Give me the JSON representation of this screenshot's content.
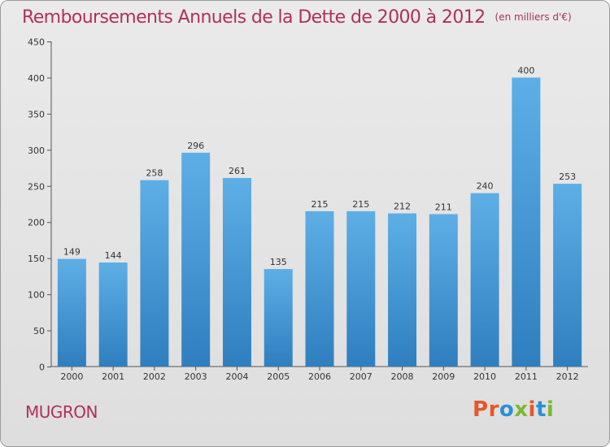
{
  "title": "Remboursements Annuels de la Dette de 2000 à 2012",
  "subtitle": "(en milliers d'€)",
  "commune": "MUGRON",
  "brand": "Proxiti",
  "colors": {
    "title": "#b0305c",
    "bar_top": "#5eaee6",
    "bar_bottom": "#2f7fc0",
    "logo_letters": [
      "#e4582a",
      "#e4582a",
      "#2a8fd6",
      "#7cb832",
      "#e4582a",
      "#2a8fd6",
      "#7cb832"
    ]
  },
  "chart_data": {
    "type": "bar",
    "title": "Remboursements Annuels de la Dette de 2000 à 2012",
    "xlabel": "",
    "ylabel": "",
    "categories": [
      "2000",
      "2001",
      "2002",
      "2003",
      "2004",
      "2005",
      "2006",
      "2007",
      "2008",
      "2009",
      "2010",
      "2011",
      "2012"
    ],
    "values": [
      149,
      144,
      258,
      296,
      261,
      135,
      215,
      215,
      212,
      211,
      240,
      400,
      253
    ],
    "ylim": [
      0,
      450
    ],
    "yticks": [
      0,
      50,
      100,
      150,
      200,
      250,
      300,
      350,
      400,
      450
    ],
    "grid": false,
    "data_labels": true
  }
}
